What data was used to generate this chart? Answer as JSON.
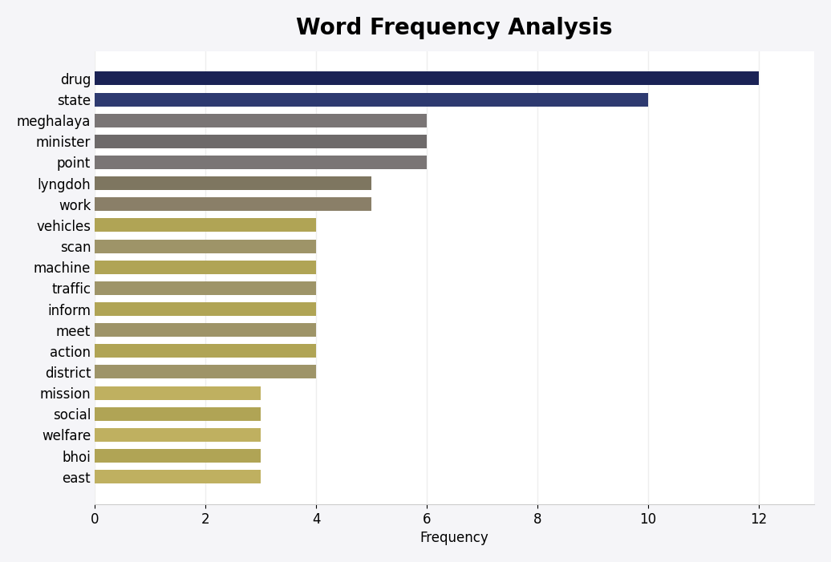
{
  "title": "Word Frequency Analysis",
  "xlabel": "Frequency",
  "categories": [
    "east",
    "bhoi",
    "welfare",
    "social",
    "mission",
    "district",
    "action",
    "meet",
    "inform",
    "traffic",
    "machine",
    "scan",
    "vehicles",
    "work",
    "lyngdoh",
    "point",
    "minister",
    "meghalaya",
    "state",
    "drug"
  ],
  "values": [
    3,
    3,
    3,
    3,
    3,
    4,
    4,
    4,
    4,
    4,
    4,
    4,
    4,
    5,
    5,
    6,
    6,
    6,
    10,
    12
  ],
  "bar_colors": [
    "#bfb060",
    "#b0a455",
    "#bfb060",
    "#b0a455",
    "#bfb060",
    "#9e9468",
    "#b0a455",
    "#9e9468",
    "#b0a455",
    "#9e9468",
    "#b0a455",
    "#9e9468",
    "#b0a455",
    "#8a7f68",
    "#7e7660",
    "#7a7575",
    "#6e6a6a",
    "#7a7575",
    "#2e3a70",
    "#1a2255"
  ],
  "xlim": [
    0,
    13
  ],
  "xticks": [
    0,
    2,
    4,
    6,
    8,
    10,
    12
  ],
  "background_color": "#f5f5f8",
  "plot_background": "#ffffff",
  "title_fontsize": 20,
  "label_fontsize": 12,
  "tick_fontsize": 12,
  "bar_height": 0.65
}
